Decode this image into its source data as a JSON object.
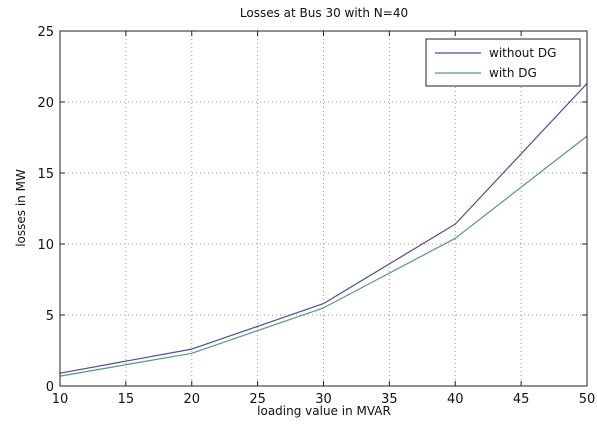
{
  "chart_data": {
    "type": "line",
    "title": "Losses at Bus 30 with N=40",
    "xlabel": "loading value in MVAR",
    "ylabel": "losses in MW",
    "xlim": [
      10,
      50
    ],
    "ylim": [
      0,
      25
    ],
    "xticks": [
      10,
      15,
      20,
      25,
      30,
      35,
      40,
      45,
      50
    ],
    "yticks": [
      0,
      5,
      10,
      15,
      20,
      25
    ],
    "grid": true,
    "legend_position": "top-right",
    "x": [
      10,
      20,
      30,
      40,
      50
    ],
    "series": [
      {
        "name": "without DG",
        "color": "#4a4aa8",
        "values": [
          0.9,
          2.6,
          5.8,
          11.4,
          21.3
        ]
      },
      {
        "name": "with DG",
        "color": "#4f9e6e",
        "values": [
          0.7,
          2.3,
          5.5,
          10.4,
          17.6
        ]
      }
    ]
  }
}
